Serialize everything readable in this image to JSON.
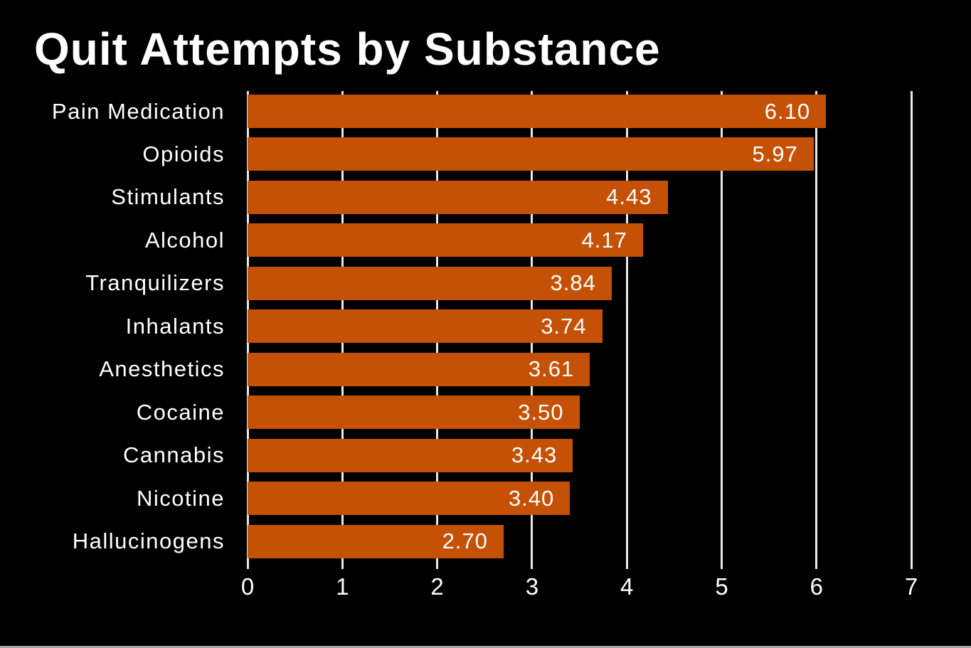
{
  "title": "Quit Attempts by Substance",
  "colors": {
    "background": "#000000",
    "bar": "#C55106",
    "grid": "#E8E8E8",
    "text": "#FFFFFF",
    "bottom_strip": "#A6A6A6"
  },
  "chart_data": {
    "type": "bar",
    "orientation": "horizontal",
    "title": "Quit Attempts by Substance",
    "categories": [
      "Pain Medication",
      "Opioids",
      "Stimulants",
      "Alcohol",
      "Tranquilizers",
      "Inhalants",
      "Anesthetics",
      "Cocaine",
      "Cannabis",
      "Nicotine",
      "Hallucinogens"
    ],
    "values": [
      6.1,
      5.97,
      4.43,
      4.17,
      3.84,
      3.74,
      3.61,
      3.5,
      3.43,
      3.4,
      2.7
    ],
    "value_labels": [
      "6.10",
      "5.97",
      "4.43",
      "4.17",
      "3.84",
      "3.74",
      "3.61",
      "3.50",
      "3.43",
      "3.40",
      "2.70"
    ],
    "xlabel": "",
    "ylabel": "",
    "xlim": [
      0,
      7
    ],
    "x_ticks": [
      "0",
      "1",
      "2",
      "3",
      "4",
      "5",
      "6",
      "7"
    ],
    "grid": true,
    "legend": false,
    "bar_label_position": "inside-end"
  }
}
